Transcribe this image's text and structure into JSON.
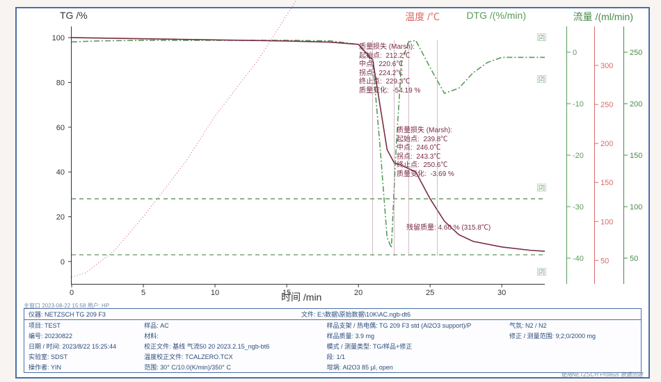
{
  "labels": {
    "tg": "TG /%",
    "temp": "温度 /℃",
    "dtg": "DTG /(%/min)",
    "flow": "流量 /(ml/min)",
    "xaxis": "时间 /min",
    "window": "主窗口    2023-08-22 15:58 用户: HP",
    "footer": "使用NETZSCH Proteus 数据创建"
  },
  "colors": {
    "tg": "#7a2a45",
    "temp": "#d96a6a",
    "dtg": "#5a9a5a",
    "flow": "#4a8a4a",
    "grid": "#cccccc",
    "frame": "#4a6fa5",
    "text": "#333333",
    "meta": "#2a4a7a"
  },
  "plot": {
    "x": {
      "min": 0,
      "max": 33,
      "ticks": [
        0,
        5,
        10,
        15,
        20,
        25,
        30
      ]
    },
    "tg_axis": {
      "min": -10,
      "max": 105,
      "ticks": [
        0,
        20,
        40,
        60,
        80,
        100
      ]
    },
    "temp_axis": {
      "min": 20,
      "max": 350,
      "ticks": [
        50,
        100,
        150,
        200,
        250,
        300
      ],
      "color": "#d96a6a"
    },
    "dtg_axis": {
      "min": -45,
      "max": 5,
      "ticks": [
        0,
        -10,
        -20,
        -30,
        -40
      ],
      "color": "#5a9a5a"
    },
    "flow_axis": {
      "min": 25,
      "max": 275,
      "ticks": [
        50,
        100,
        150,
        200,
        250
      ],
      "color": "#4a8a4a"
    }
  },
  "series": {
    "tg": [
      [
        0,
        100
      ],
      [
        5,
        99.5
      ],
      [
        10,
        99
      ],
      [
        15,
        98.5
      ],
      [
        18,
        98
      ],
      [
        20,
        97
      ],
      [
        21,
        90
      ],
      [
        21.5,
        70
      ],
      [
        22,
        50
      ],
      [
        22.5,
        44
      ],
      [
        23,
        43
      ],
      [
        24,
        40
      ],
      [
        25,
        28
      ],
      [
        26,
        18
      ],
      [
        27,
        12
      ],
      [
        28,
        9
      ],
      [
        30,
        6.5
      ],
      [
        32,
        5
      ],
      [
        33,
        4.6
      ]
    ],
    "temp": [
      [
        0,
        -7
      ],
      [
        1,
        -5
      ],
      [
        3,
        5
      ],
      [
        5,
        20
      ],
      [
        8,
        45
      ],
      [
        10,
        65
      ],
      [
        13,
        90
      ],
      [
        15,
        110
      ],
      [
        18,
        140
      ],
      [
        20,
        165
      ],
      [
        22,
        190
      ],
      [
        24,
        215
      ],
      [
        26,
        240
      ],
      [
        28,
        265
      ],
      [
        30,
        290
      ],
      [
        32,
        315
      ],
      [
        33,
        325
      ]
    ],
    "dtg": [
      [
        0,
        2
      ],
      [
        2,
        2.2
      ],
      [
        5,
        2.3
      ],
      [
        10,
        2.3
      ],
      [
        15,
        2.3
      ],
      [
        18,
        2.2
      ],
      [
        20,
        1.5
      ],
      [
        21,
        -2
      ],
      [
        21.5,
        -18
      ],
      [
        22,
        -36
      ],
      [
        22.3,
        -38
      ],
      [
        22.6,
        -20
      ],
      [
        23,
        -2
      ],
      [
        23.5,
        2
      ],
      [
        24,
        2.3
      ],
      [
        25,
        -3
      ],
      [
        26,
        -8
      ],
      [
        27,
        -7
      ],
      [
        28,
        -4
      ],
      [
        29,
        -2
      ],
      [
        30,
        -1
      ],
      [
        32,
        -1
      ],
      [
        33,
        -1
      ]
    ],
    "flow_h1": 28,
    "flow_h2": 3
  },
  "callouts": {
    "c1": {
      "title": "质量损失 (Marsh):",
      "rows": [
        [
          "起始点:",
          "212.2℃"
        ],
        [
          "中点:",
          "220.6℃"
        ],
        [
          "拐点:",
          "224.2℃"
        ],
        [
          "终止点:",
          "229.3℃"
        ],
        [
          "质量变化:",
          "-54.19 %"
        ]
      ],
      "color": "#7a2a45"
    },
    "c2": {
      "title": "质量损失 (Marsh):",
      "rows": [
        [
          "起始点:",
          "239.8℃"
        ],
        [
          "中点:",
          "246.0℃"
        ],
        [
          "拐点:",
          "243.3℃"
        ],
        [
          "终止点:",
          "250.6℃"
        ],
        [
          "质量变化:",
          "-3.69 %"
        ]
      ],
      "color": "#7a2a45"
    },
    "residual": {
      "text": "残留质量: 4.60 % (315.8℃)",
      "color": "#7a2a45"
    }
  },
  "meta": {
    "r0": [
      [
        "仪器:",
        "NETZSCH TG 209 F3"
      ],
      [
        "",
        "文件:  E:\\数据\\原始数据\\10K\\AC.ngb-dt6"
      ]
    ],
    "rows": [
      [
        [
          "项目:",
          "TEST"
        ],
        [
          "样品:",
          "AC"
        ],
        [
          "样品支架 / 热电偶:",
          "TG 209 F3 std (Al2O3 support)/P"
        ],
        [
          "气氛:",
          "N2 / N2"
        ]
      ],
      [
        [
          "编号:",
          "20230822"
        ],
        [
          "材料:",
          ""
        ],
        [
          "样品质量:",
          "3.9 mg"
        ],
        [
          "修正 / 测量范围:",
          "9;2;0/2000 mg"
        ]
      ],
      [
        [
          "日期 / 时间:",
          "2023/8/22 15:25:44"
        ],
        [
          "校正文件:",
          "基线 气流50  20  2023.2.15_ngb-bt6"
        ],
        [
          "模式 / 测量类型:",
          "TG/样品+修正"
        ],
        [
          "",
          ""
        ]
      ],
      [
        [
          "实验室:",
          "SDST"
        ],
        [
          "温度校正文件:",
          "TCALZERO.TCX"
        ],
        [
          "段:",
          "1/1"
        ],
        [
          "",
          ""
        ]
      ],
      [
        [
          "操作者:",
          "YIN"
        ],
        [
          "范围:",
          "30° C/10.0(K/min)/350° C"
        ],
        [
          "坩埚:",
          "Al2O3 85 µl, open"
        ],
        [
          "",
          ""
        ]
      ]
    ]
  }
}
